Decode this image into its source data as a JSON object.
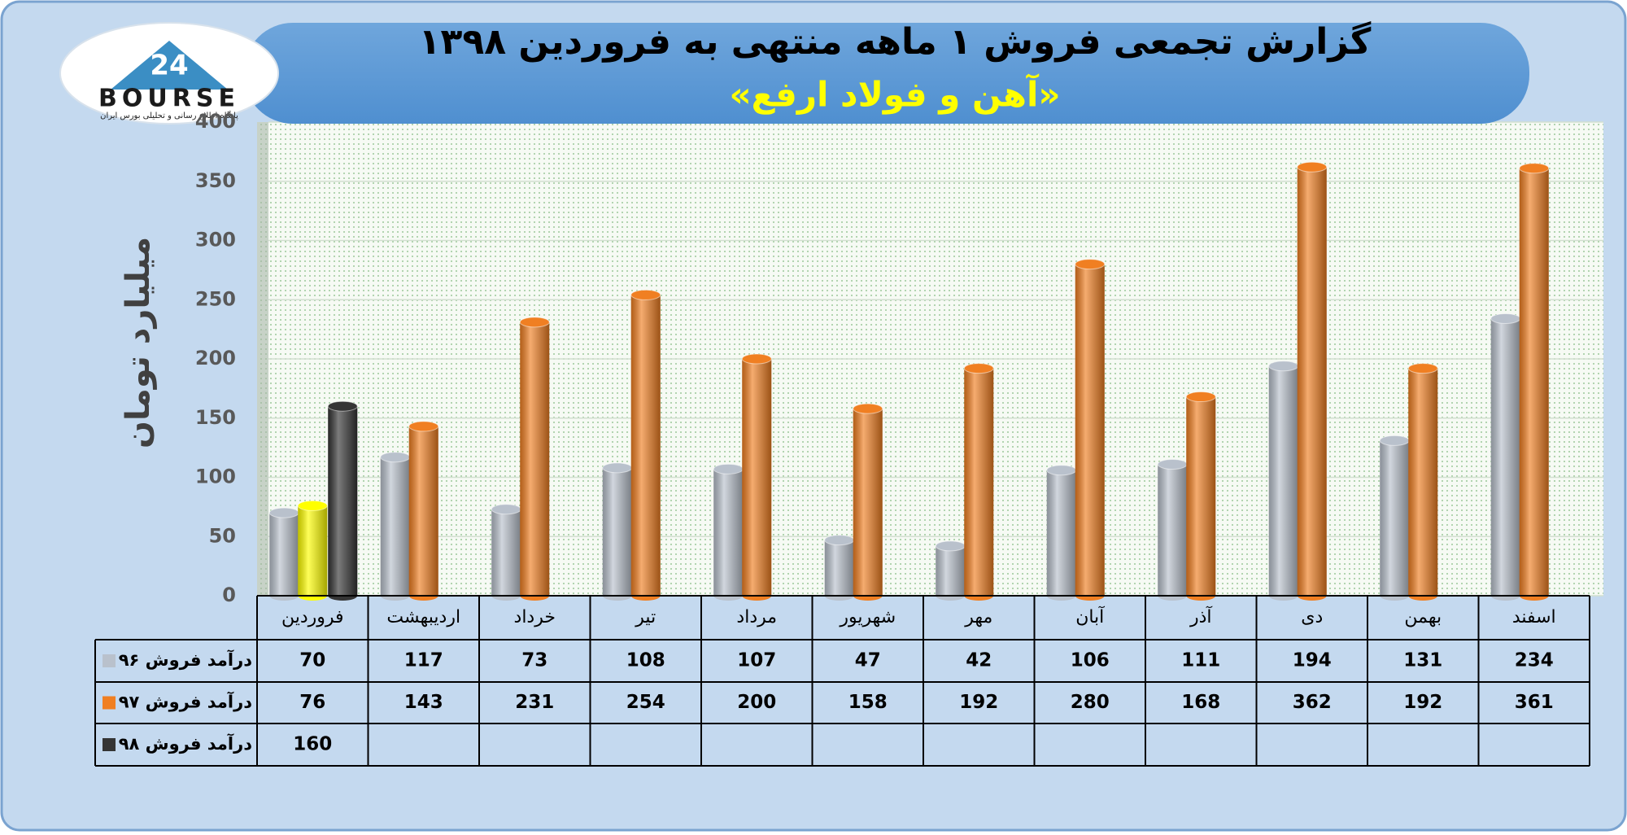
{
  "chart_data": {
    "type": "bar",
    "title": "گزارش تجمعی فروش ۱ ماهه منتهی به فروردین ۱۳۹۸",
    "subtitle": "«آهن و فولاد ارفع»",
    "y_label": "میلیارد تومان",
    "categories": [
      "فروردین",
      "اردیبهشت",
      "خرداد",
      "تیر",
      "مرداد",
      "شهریور",
      "مهر",
      "آبان",
      "آذر",
      "دی",
      "بهمن",
      "اسفند"
    ],
    "series": [
      {
        "name": "درآمد فروش ۹۶",
        "color": "#b9c1cc",
        "values": [
          70,
          117,
          73,
          108,
          107,
          47,
          42,
          106,
          111,
          194,
          131,
          234
        ]
      },
      {
        "name": "درآمد فروش ۹۷",
        "color": "#f07f22",
        "colors": [
          "#ffff00",
          "#f07f22",
          "#f07f22",
          "#f07f22",
          "#f07f22",
          "#f07f22",
          "#f07f22",
          "#f07f22",
          "#f07f22",
          "#f07f22",
          "#f07f22",
          "#f07f22"
        ],
        "values": [
          76,
          143,
          231,
          254,
          200,
          158,
          192,
          280,
          168,
          362,
          192,
          361
        ]
      },
      {
        "name": "درآمد فروش ۹۸",
        "color": "#353535",
        "values": [
          160,
          null,
          null,
          null,
          null,
          null,
          null,
          null,
          null,
          null,
          null,
          null
        ]
      }
    ],
    "ylim": [
      0,
      400
    ],
    "yticks": [
      0,
      50,
      100,
      150,
      200,
      250,
      300,
      350,
      400
    ],
    "grid": true
  },
  "logo": {
    "number": "24",
    "name": "BOURSE",
    "tagline": "پایگاه اطلاع رسانی و تحلیلی بورس ایران"
  }
}
